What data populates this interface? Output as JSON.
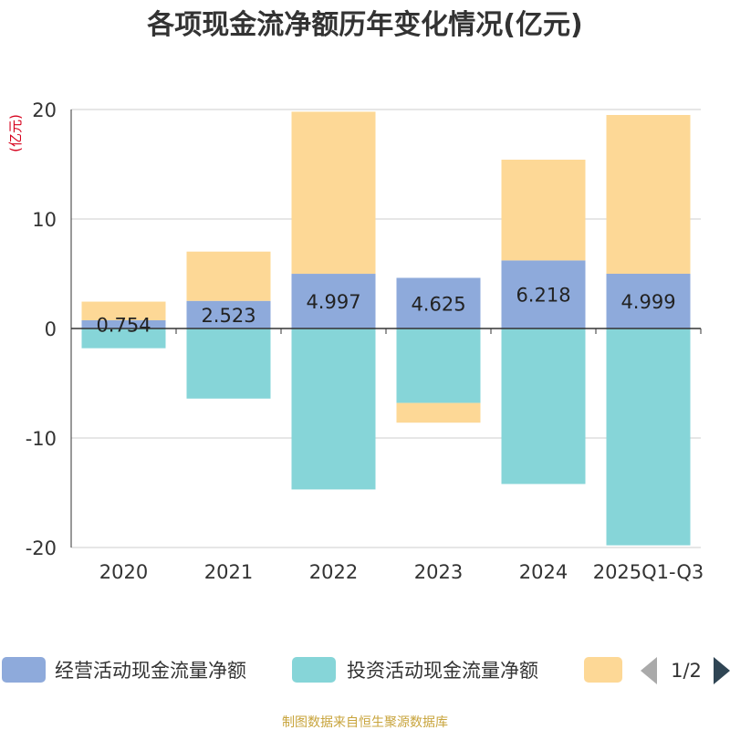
{
  "chart_data": {
    "type": "bar",
    "stacked": true,
    "title": "各项现金流净额历年变化情况(亿元)",
    "unit_label": "(亿元)",
    "categories": [
      "2020",
      "2021",
      "2022",
      "2023",
      "2024",
      "2025Q1-Q3"
    ],
    "yticks": [
      "20",
      "10",
      "0",
      "-10",
      "-20"
    ],
    "ylim": [
      -20,
      20
    ],
    "series": [
      {
        "name": "经营活动现金流量净额",
        "color": "#8eaadb",
        "values": [
          0.754,
          2.523,
          4.997,
          4.625,
          6.218,
          4.999
        ],
        "labels": [
          "0.754",
          "2.523",
          "4.997",
          "4.625",
          "6.218",
          "4.999"
        ]
      },
      {
        "name": "投资活动现金流量净额",
        "color": "#86d5d8",
        "values": [
          -1.8,
          -6.4,
          -14.7,
          -6.8,
          -14.2,
          -19.8
        ]
      },
      {
        "name": "",
        "color": "#fdd896",
        "values": [
          1.7,
          4.5,
          14.8,
          -1.8,
          9.2,
          14.5
        ]
      }
    ],
    "legend": {
      "page": "1/2"
    },
    "source": "制图数据来自恒生聚源数据库"
  }
}
